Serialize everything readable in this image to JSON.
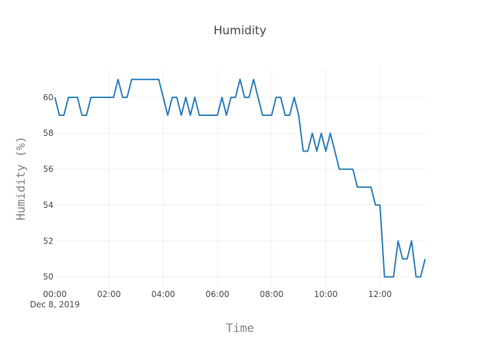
{
  "chart_data": {
    "type": "line",
    "title": "Humidity",
    "xlabel": "Time",
    "ylabel": "Humidity (%)",
    "x_date_label": "Dec 8, 2019",
    "x_start": "00:00",
    "x_step_minutes": 10,
    "x_ticks": [
      "00:00",
      "02:00",
      "04:00",
      "06:00",
      "08:00",
      "10:00",
      "12:00"
    ],
    "y_ticks": [
      50,
      52,
      54,
      56,
      58,
      60
    ],
    "xlim": [
      "00:00",
      "13:40"
    ],
    "ylim": [
      49.45,
      61.6
    ],
    "grid": true,
    "line_color": "#1f77b4",
    "series": [
      {
        "values": [
          60,
          59,
          59,
          60,
          60,
          60,
          59,
          59,
          60,
          60,
          60,
          60,
          60,
          60,
          61,
          60,
          60,
          61,
          61,
          61,
          61,
          61,
          61,
          61,
          60,
          59,
          60,
          60,
          59,
          60,
          59,
          60,
          59,
          59,
          59,
          59,
          59,
          60,
          59,
          60,
          60,
          61,
          60,
          60,
          61,
          60,
          59,
          59,
          59,
          60,
          60,
          59,
          59,
          60,
          59,
          57,
          57,
          58,
          57,
          58,
          57,
          58,
          57,
          56,
          56,
          56,
          56,
          55,
          55,
          55,
          55,
          54,
          54,
          50,
          50,
          50,
          52,
          51,
          51,
          52,
          50,
          50,
          51
        ]
      }
    ]
  }
}
